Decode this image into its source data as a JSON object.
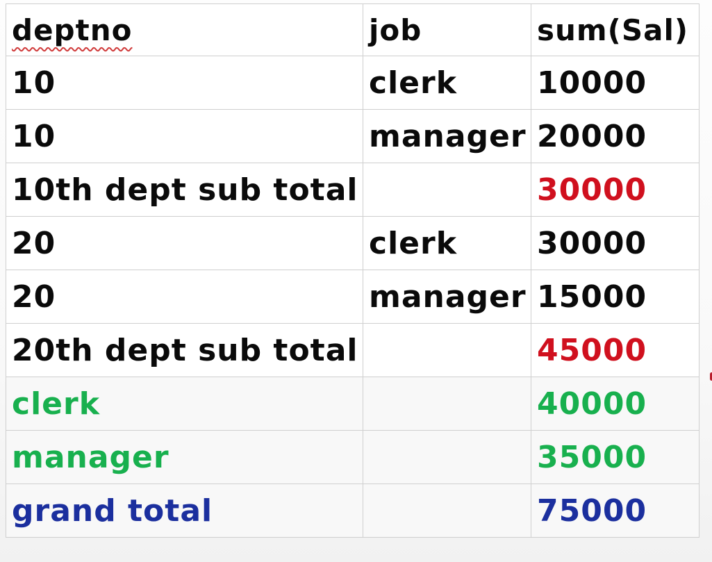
{
  "colors": {
    "subtotal": "#d0101e",
    "job_total": "#18b04e",
    "grand_total": "#1b2f9e",
    "text": "#0a0a0a",
    "grid": "#cfcfcf"
  },
  "table": {
    "headers": [
      "deptno",
      "job",
      "sum(Sal)"
    ],
    "rows": [
      {
        "deptno": "10",
        "job": "clerk",
        "sum": "10000",
        "kind": "detail"
      },
      {
        "deptno": "10",
        "job": "manager",
        "sum": "20000",
        "kind": "detail"
      },
      {
        "deptno": "10th dept sub total",
        "job": "",
        "sum": "30000",
        "kind": "subtotal"
      },
      {
        "deptno": "20",
        "job": "clerk",
        "sum": "30000",
        "kind": "detail"
      },
      {
        "deptno": "20",
        "job": "manager",
        "sum": "15000",
        "kind": "detail"
      },
      {
        "deptno": "20th dept sub total",
        "job": "",
        "sum": "45000",
        "kind": "subtotal"
      },
      {
        "deptno": "clerk",
        "job": "",
        "sum": "40000",
        "kind": "job_total"
      },
      {
        "deptno": "manager",
        "job": "",
        "sum": "35000",
        "kind": "job_total"
      },
      {
        "deptno": "grand total",
        "job": "",
        "sum": "75000",
        "kind": "grand_total"
      }
    ]
  }
}
